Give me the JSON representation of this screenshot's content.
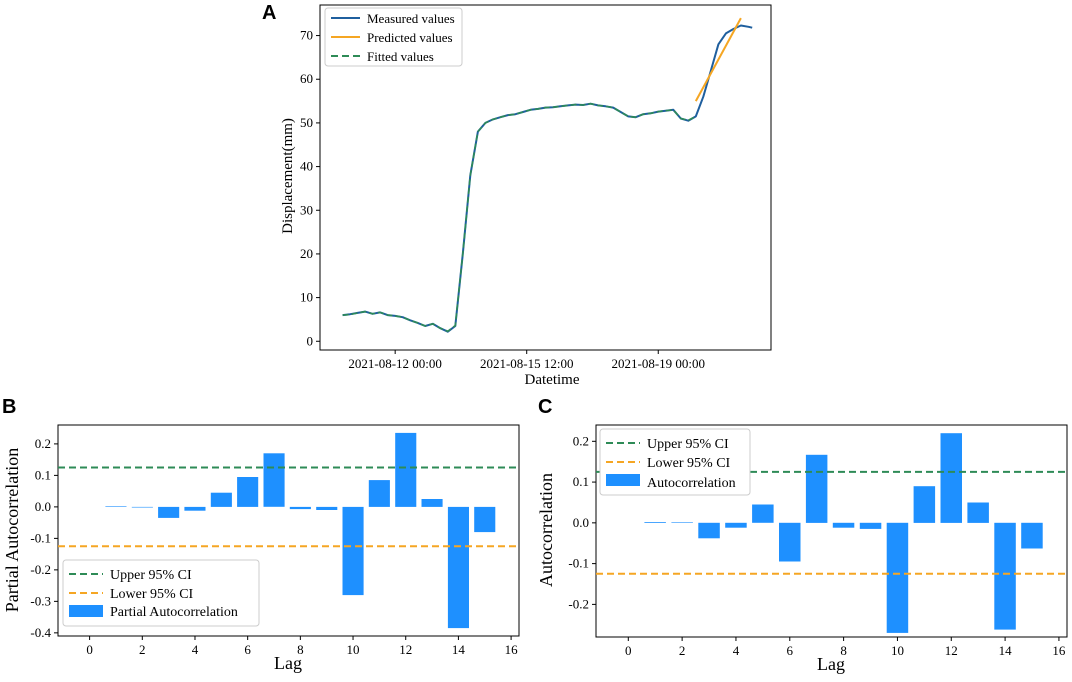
{
  "panels": {
    "a": "A",
    "b": "B",
    "c": "C"
  },
  "chart_data": [
    {
      "id": "A",
      "type": "line",
      "xlabel": "Datetime",
      "ylabel": "Displacement(mm)",
      "ylim": [
        -2,
        77
      ],
      "xlim": [
        0,
        12
      ],
      "x_ticks": [
        {
          "x": 2,
          "label": "2021-08-12 00:00"
        },
        {
          "x": 5.5,
          "label": "2021-08-15 12:00"
        },
        {
          "x": 9,
          "label": "2021-08-19 00:00"
        }
      ],
      "y_ticks": [
        0,
        10,
        20,
        30,
        40,
        50,
        60,
        70
      ],
      "legend": [
        "Measured values",
        "Predicted values",
        "Fitted values"
      ],
      "colors": {
        "measured": "#1f5f9e",
        "predicted": "#f5a623",
        "fitted": "#2e8b57"
      },
      "series": [
        {
          "name": "Measured values",
          "x": [
            0.6,
            0.8,
            1.0,
            1.2,
            1.4,
            1.6,
            1.8,
            2.0,
            2.2,
            2.4,
            2.6,
            2.8,
            3.0,
            3.2,
            3.4,
            3.6,
            3.8,
            4.0,
            4.2,
            4.4,
            4.6,
            4.8,
            5.0,
            5.2,
            5.4,
            5.6,
            5.8,
            6.0,
            6.2,
            6.4,
            6.6,
            6.8,
            7.0,
            7.2,
            7.4,
            7.6,
            7.8,
            8.0,
            8.2,
            8.4,
            8.6,
            8.8,
            9.0,
            9.2,
            9.4,
            9.6,
            9.8,
            10.0,
            10.2,
            10.4,
            10.6,
            10.8,
            11.0,
            11.2,
            11.4,
            11.5
          ],
          "y": [
            6.0,
            6.2,
            6.5,
            6.8,
            6.3,
            6.6,
            6.0,
            5.8,
            5.5,
            4.8,
            4.2,
            3.5,
            4.0,
            3.0,
            2.2,
            3.5,
            20.0,
            38.0,
            48.0,
            50.0,
            50.8,
            51.3,
            51.8,
            52.0,
            52.5,
            53.0,
            53.2,
            53.5,
            53.6,
            53.8,
            54.0,
            54.2,
            54.1,
            54.4,
            54.0,
            53.8,
            53.5,
            52.5,
            51.5,
            51.3,
            52.0,
            52.2,
            52.6,
            52.8,
            53.0,
            51.0,
            50.5,
            51.5,
            56.0,
            62.0,
            68.0,
            70.5,
            71.5,
            72.3,
            72.0,
            71.8
          ]
        },
        {
          "name": "Predicted values",
          "x": [
            10.0,
            11.2
          ],
          "y": [
            55.0,
            74.0
          ]
        },
        {
          "name": "Fitted values",
          "x": [
            0.6,
            0.8,
            1.0,
            1.2,
            1.4,
            1.6,
            1.8,
            2.0,
            2.2,
            2.4,
            2.6,
            2.8,
            3.0,
            3.2,
            3.4,
            3.6,
            3.8,
            4.0,
            4.2,
            4.4,
            4.6,
            4.8,
            5.0,
            5.2,
            5.4,
            5.6,
            5.8,
            6.0,
            6.2,
            6.4,
            6.6,
            6.8,
            7.0,
            7.2,
            7.4,
            7.6,
            7.8,
            8.0,
            8.2,
            8.4,
            8.6,
            8.8,
            9.0,
            9.2,
            9.4,
            9.6,
            9.8,
            10.0
          ],
          "y": [
            6.0,
            6.1,
            6.5,
            6.8,
            6.3,
            6.6,
            6.0,
            5.8,
            5.5,
            4.8,
            4.2,
            3.5,
            4.0,
            3.0,
            2.3,
            3.6,
            20.0,
            38.0,
            48.0,
            50.0,
            50.8,
            51.3,
            51.8,
            52.0,
            52.5,
            53.0,
            53.2,
            53.5,
            53.6,
            53.8,
            54.0,
            54.2,
            54.1,
            54.4,
            54.0,
            53.8,
            53.5,
            52.5,
            51.5,
            51.3,
            52.0,
            52.2,
            52.6,
            52.8,
            53.0,
            51.0,
            50.6,
            51.5
          ]
        }
      ]
    },
    {
      "id": "B",
      "type": "bar",
      "xlabel": "Lag",
      "ylabel": "Partial Autocorrelation",
      "xlim": [
        -1.2,
        16.3
      ],
      "ylim": [
        -0.41,
        0.26
      ],
      "x_ticks": [
        0,
        2,
        4,
        6,
        8,
        10,
        12,
        14,
        16
      ],
      "y_ticks": [
        0.2,
        0.1,
        0.0,
        -0.1,
        -0.2,
        -0.3,
        -0.4
      ],
      "y_tick_labels": [
        "0.2",
        "0.1",
        "0.0",
        "-0.1",
        "-0.2",
        "-0.3",
        "-0.4"
      ],
      "ci_upper": 0.125,
      "ci_lower": -0.125,
      "legend": [
        "Upper 95% CI",
        "Lower 95% CI",
        "Partial Autocorrelation"
      ],
      "colors": {
        "bar": "#1e90ff",
        "upper": "#2e8b57",
        "lower": "#f5a623"
      },
      "lags": [
        1,
        2,
        3,
        4,
        5,
        6,
        7,
        8,
        9,
        10,
        11,
        12,
        13,
        14,
        15
      ],
      "values": [
        0.002,
        0.0,
        -0.035,
        -0.012,
        0.045,
        0.095,
        0.17,
        -0.007,
        -0.01,
        -0.28,
        0.085,
        0.235,
        0.025,
        -0.385,
        -0.08
      ]
    },
    {
      "id": "C",
      "type": "bar",
      "xlabel": "Lag",
      "ylabel": "Autocorrelation",
      "xlim": [
        -1.2,
        16.3
      ],
      "ylim": [
        -0.28,
        0.24
      ],
      "x_ticks": [
        0,
        2,
        4,
        6,
        8,
        10,
        12,
        14,
        16
      ],
      "y_ticks": [
        0.2,
        0.1,
        0.0,
        -0.1,
        -0.2
      ],
      "y_tick_labels": [
        "0.2",
        "0.1",
        "0.0",
        "-0.1",
        "-0.2"
      ],
      "ci_upper": 0.125,
      "ci_lower": -0.125,
      "legend": [
        "Upper 95% CI",
        "Lower 95% CI",
        "Autocorrelation"
      ],
      "colors": {
        "bar": "#1e90ff",
        "upper": "#2e8b57",
        "lower": "#f5a623"
      },
      "lags": [
        1,
        2,
        3,
        4,
        5,
        6,
        7,
        8,
        9,
        10,
        11,
        12,
        13,
        14,
        15
      ],
      "values": [
        0.002,
        0.001,
        -0.038,
        -0.012,
        0.045,
        -0.095,
        0.167,
        -0.012,
        -0.015,
        -0.27,
        0.09,
        0.22,
        0.05,
        -0.262,
        -0.063
      ]
    }
  ]
}
